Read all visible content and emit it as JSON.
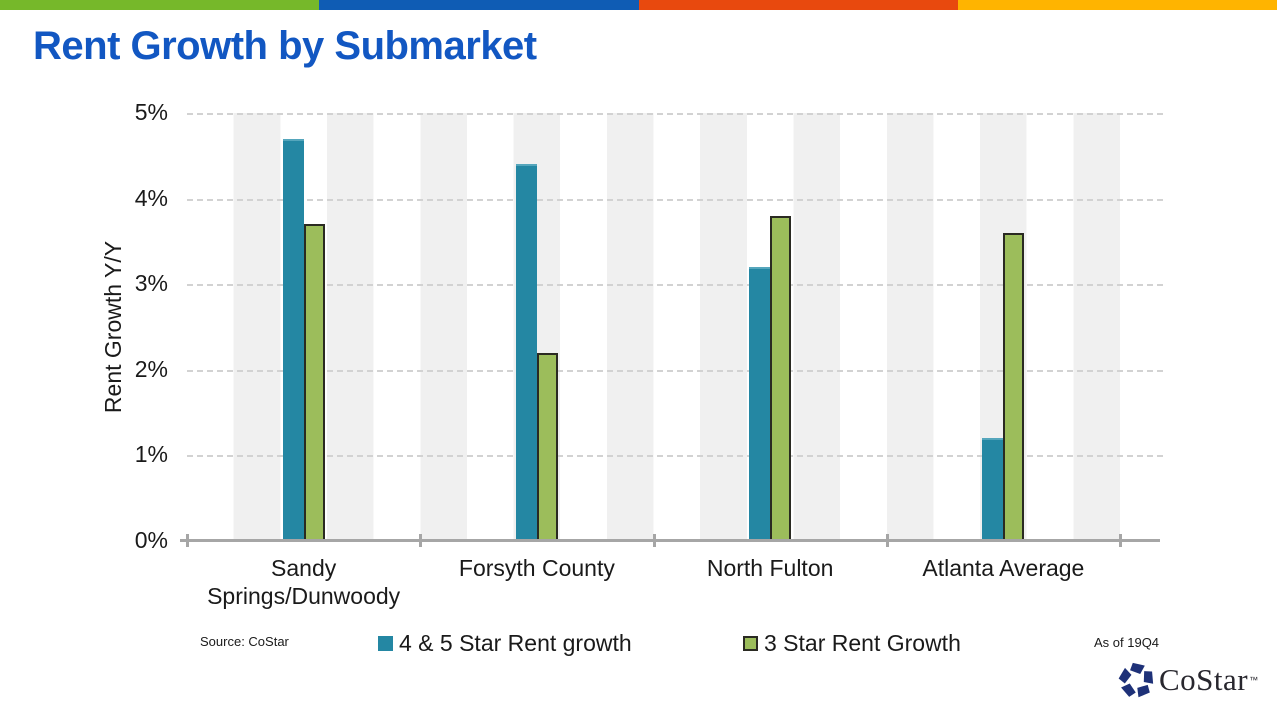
{
  "page": {
    "title": "Rent Growth by Submarket",
    "title_color": "#1257c2"
  },
  "top_bar": {
    "segment_colors": [
      "#76b82a",
      "#0f5cb4",
      "#e8490e",
      "#ffb400"
    ]
  },
  "chart_data": {
    "type": "bar",
    "categories": [
      "Sandy\nSprings/Dunwoody",
      "Forsyth County",
      "North Fulton",
      "Atlanta Average"
    ],
    "series": [
      {
        "name": "4 & 5 Star Rent growth",
        "color": "#2487a3",
        "values": [
          4.7,
          4.4,
          3.2,
          1.2
        ]
      },
      {
        "name": "3 Star Rent Growth",
        "color": "#9cbd5b",
        "values": [
          3.7,
          2.2,
          3.8,
          3.6
        ]
      }
    ],
    "title": "Rent Growth by Submarket",
    "xlabel": "",
    "ylabel": "Rent Growth Y/Y",
    "ylim": [
      0,
      5
    ],
    "ytick_labels": [
      "0%",
      "1%",
      "2%",
      "3%",
      "4%",
      "5%"
    ],
    "grid": "horizontal-dashed",
    "plot_background": "alternating vertical gray bands",
    "legend_position": "bottom"
  },
  "footer": {
    "source": "Source: CoStar",
    "as_of": "As of 19Q4",
    "logo_text": "CoStar",
    "logo_tm": "™"
  }
}
